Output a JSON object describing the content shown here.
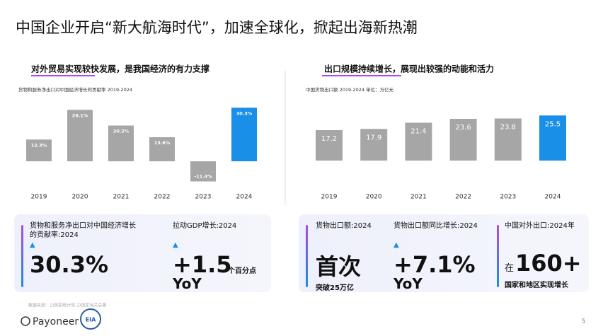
{
  "title": "中国企业开启“新大航海时代”，加速全球化，掀起出海新热潮",
  "chart_data": [
    {
      "type": "bar",
      "title": "对外贸易实现较快发展，是我国经济的有力支撑",
      "subtitle": "货物和服务净出口对中国经济增长的贡献率 2019-2024",
      "categories": [
        "2019",
        "2020",
        "2021",
        "2022",
        "2023",
        "2024"
      ],
      "values": [
        12.3,
        29.1,
        20.2,
        13.6,
        -11.4,
        30.3
      ],
      "value_labels": [
        "12.3%",
        "29.1%",
        "20.2%",
        "13.6%",
        "-11.4%",
        "30.3%"
      ],
      "colors": [
        "#a6a6a6",
        "#a6a6a6",
        "#a6a6a6",
        "#a6a6a6",
        "#a6a6a6",
        "#1a8fe8"
      ]
    },
    {
      "type": "bar",
      "title": "出口规模持续增长，展现出较强的动能和活力",
      "subtitle": "中国货物出口额 2019-2024   单位：万亿元",
      "categories": [
        "2019",
        "2020",
        "2021",
        "2022",
        "2023",
        "2024"
      ],
      "values": [
        17.2,
        17.9,
        21.4,
        23.6,
        23.8,
        25.5
      ],
      "colors": [
        "#a6a6a6",
        "#a6a6a6",
        "#a6a6a6",
        "#a6a6a6",
        "#a6a6a6",
        "#1a8fe8"
      ]
    }
  ],
  "stats": {
    "left": [
      {
        "label": "货物和服务净出口对中国经济增长的贡献率:2024",
        "arrow": "▲",
        "value": "30.3%"
      },
      {
        "label": "拉动GDP增长:2024",
        "arrow": "▲",
        "value": "+1.5",
        "unit": "个百分点",
        "note": "YoY"
      }
    ],
    "right": [
      {
        "label": "货物出口额:2024",
        "value": "首次",
        "note": "突破25万亿"
      },
      {
        "label": "货物出口额同比增长:2024",
        "arrow": "▲",
        "value": "+7.1%",
        "note": "YoY"
      },
      {
        "label": "中国对外出口:2024年",
        "prefix": "在",
        "value": "160+",
        "note": "国家和地区实现增长"
      }
    ]
  },
  "footer": {
    "source": "数据来源：1)国家统计局 2)国家海关总署",
    "brand": "Payoneer",
    "seal": "EIA",
    "page": "5"
  }
}
